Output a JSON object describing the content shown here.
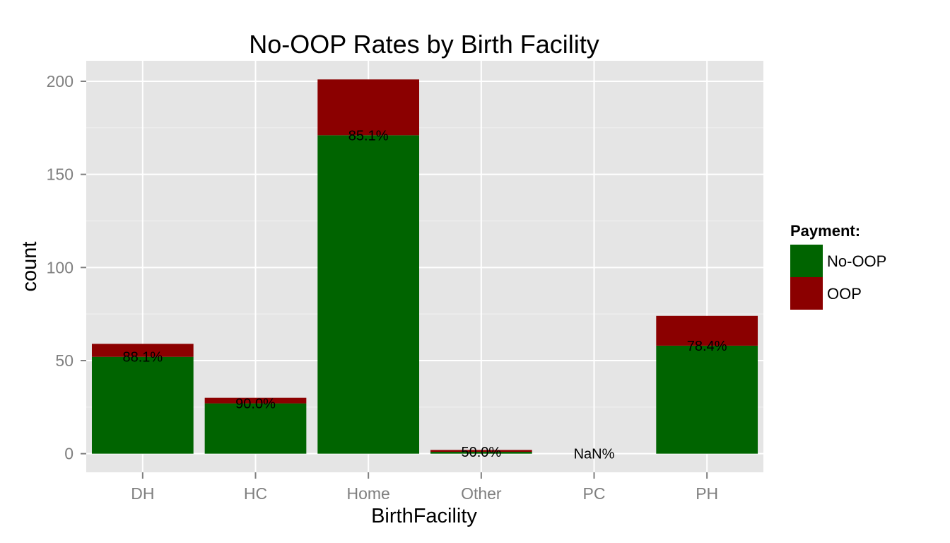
{
  "chart_data": {
    "type": "bar",
    "stacked": true,
    "title": "No-OOP Rates by Birth Facility",
    "xlabel": "BirthFacility",
    "ylabel": "count",
    "categories": [
      "DH",
      "HC",
      "Home",
      "Other",
      "PC",
      "PH"
    ],
    "series": [
      {
        "name": "No-OOP",
        "color": "#006400",
        "values": [
          52,
          27,
          171,
          1,
          0,
          58
        ]
      },
      {
        "name": "OOP",
        "color": "#8b0000",
        "values": [
          7,
          3,
          30,
          1,
          0,
          16
        ]
      }
    ],
    "data_labels": [
      "88.1%",
      "90.0%",
      "85.1%",
      "50.0%",
      "NaN%",
      "78.4%"
    ],
    "ylim": [
      -10,
      211
    ],
    "y_ticks": [
      0,
      50,
      100,
      150,
      200
    ],
    "grid": true,
    "legend": {
      "title": "Payment:",
      "position": "right"
    },
    "colors": {
      "panel": "#e5e5e5",
      "grid_major": "#ffffff",
      "grid_minor": "#f2f2f2"
    }
  }
}
